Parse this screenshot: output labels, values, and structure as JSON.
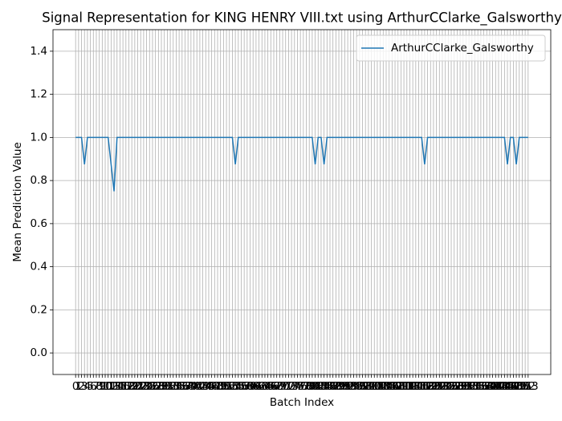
{
  "chart_data": {
    "type": "line",
    "title": "Signal Representation for KING HENRY VIII.txt using ArthurCClarke_Galsworthy",
    "xlabel": "Batch Index",
    "ylabel": "Mean Prediction Value",
    "x": [
      0,
      1,
      2,
      3,
      4,
      5,
      6,
      7,
      8,
      9,
      10,
      11,
      12,
      13,
      14,
      15,
      16,
      17,
      18,
      19,
      20,
      21,
      22,
      23,
      24,
      25,
      26,
      27,
      28,
      29,
      30,
      31,
      32,
      33,
      34,
      35,
      36,
      37,
      38,
      39,
      40,
      41,
      42,
      43,
      44,
      45,
      46,
      47,
      48,
      49,
      50,
      51,
      52,
      53,
      54,
      55,
      56,
      57,
      58,
      59,
      60,
      61,
      62,
      63,
      64,
      65,
      66,
      67,
      68,
      69,
      70,
      71,
      72,
      73,
      74,
      75,
      76,
      77,
      78,
      79,
      80,
      81,
      82,
      83,
      84,
      85,
      86,
      87,
      88,
      89,
      90,
      91,
      92,
      93,
      94,
      95,
      96,
      97,
      98,
      99,
      100,
      101,
      102,
      103,
      104,
      105,
      106,
      107,
      108,
      109,
      110,
      111,
      112,
      113,
      114,
      115,
      116,
      117,
      118,
      119,
      120,
      121,
      122,
      123,
      124,
      125,
      126,
      127,
      128,
      129,
      130,
      131,
      132,
      133,
      134,
      135,
      136,
      137,
      138,
      139,
      140,
      141,
      142,
      143,
      144,
      145,
      146,
      147,
      148,
      149,
      150,
      151,
      152,
      153
    ],
    "series": [
      {
        "name": "ArthurCClarke_Galsworthy",
        "color": "#1f77b4",
        "values": [
          1,
          1,
          1,
          0.875,
          1,
          1,
          1,
          1,
          1,
          1,
          1,
          1,
          0.875,
          0.75,
          1,
          1,
          1,
          1,
          1,
          1,
          1,
          1,
          1,
          1,
          1,
          1,
          1,
          1,
          1,
          1,
          1,
          1,
          1,
          1,
          1,
          1,
          1,
          1,
          1,
          1,
          1,
          1,
          1,
          1,
          1,
          1,
          1,
          1,
          1,
          1,
          1,
          1,
          1,
          1,
          0.875,
          1,
          1,
          1,
          1,
          1,
          1,
          1,
          1,
          1,
          1,
          1,
          1,
          1,
          1,
          1,
          1,
          1,
          1,
          1,
          1,
          1,
          1,
          1,
          1,
          1,
          1,
          0.875,
          1,
          1,
          0.875,
          1,
          1,
          1,
          1,
          1,
          1,
          1,
          1,
          1,
          1,
          1,
          1,
          1,
          1,
          1,
          1,
          1,
          1,
          1,
          1,
          1,
          1,
          1,
          1,
          1,
          1,
          1,
          1,
          1,
          1,
          1,
          1,
          1,
          0.875,
          1,
          1,
          1,
          1,
          1,
          1,
          1,
          1,
          1,
          1,
          1,
          1,
          1,
          1,
          1,
          1,
          1,
          1,
          1,
          1,
          1,
          1,
          1,
          1,
          1,
          1,
          1,
          0.875,
          1,
          1,
          0.875,
          1,
          1,
          1,
          1
        ]
      }
    ],
    "xlim": [
      -7.65,
      160.65
    ],
    "xticks": [
      0,
      1,
      2,
      3,
      4,
      5,
      6,
      7,
      8,
      9,
      10,
      11,
      12,
      13,
      14,
      15,
      16,
      17,
      18,
      19,
      20,
      21,
      22,
      23,
      24,
      25,
      26,
      27,
      28,
      29,
      30,
      31,
      32,
      33,
      34,
      35,
      36,
      37,
      38,
      39,
      40,
      41,
      42,
      43,
      44,
      45,
      46,
      47,
      48,
      49,
      50,
      51,
      52,
      53,
      54,
      55,
      56,
      57,
      58,
      59,
      60,
      61,
      62,
      63,
      64,
      65,
      66,
      67,
      68,
      69,
      70,
      71,
      72,
      73,
      74,
      75,
      76,
      77,
      78,
      79,
      80,
      81,
      82,
      83,
      84,
      85,
      86,
      87,
      88,
      89,
      90,
      91,
      92,
      93,
      94,
      95,
      96,
      97,
      98,
      99,
      100,
      101,
      102,
      103,
      104,
      105,
      106,
      107,
      108,
      109,
      110,
      111,
      112,
      113,
      114,
      115,
      116,
      117,
      118,
      119,
      120,
      121,
      122,
      123,
      124,
      125,
      126,
      127,
      128,
      129,
      130,
      131,
      132,
      133,
      134,
      135,
      136,
      137,
      138,
      139,
      140,
      141,
      142,
      143,
      144,
      145,
      146,
      147,
      148,
      149,
      150,
      151,
      152,
      153
    ],
    "ylim": [
      -0.1,
      1.5
    ],
    "yticks": [
      {
        "value": 0,
        "label": "0.0"
      },
      {
        "value": 0.2,
        "label": "0.2"
      },
      {
        "value": 0.4,
        "label": "0.4"
      },
      {
        "value": 0.6,
        "label": "0.6"
      },
      {
        "value": 0.8,
        "label": "0.8"
      },
      {
        "value": 1,
        "label": "1.0"
      },
      {
        "value": 1.2,
        "label": "1.2"
      },
      {
        "value": 1.4,
        "label": "1.4"
      }
    ],
    "grid": true,
    "legend": "upper right"
  }
}
